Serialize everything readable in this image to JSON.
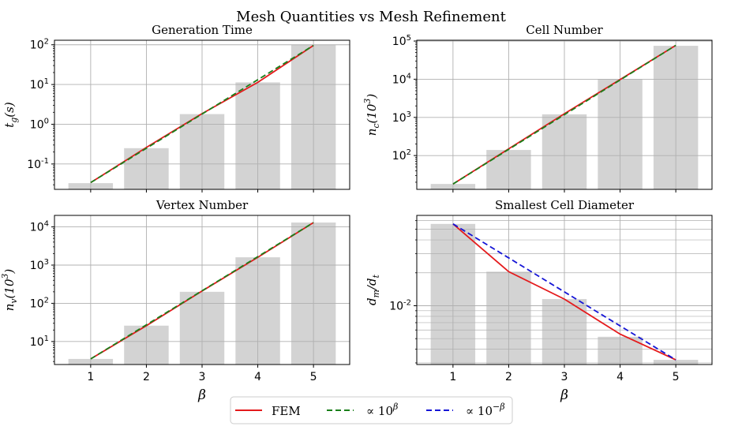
{
  "figure": {
    "suptitle": "Mesh Quantities vs Mesh Refinement",
    "legend": {
      "placement": "bottom-center",
      "entries": [
        {
          "label": "FEM",
          "color": "#e41a1c",
          "style": "solid"
        },
        {
          "label": "∝ 10^β",
          "color": "#1a7f1a",
          "style": "dashed"
        },
        {
          "label": "∝ 10^−β",
          "color": "#1515d6",
          "style": "dashed"
        }
      ]
    }
  },
  "chart_data": [
    {
      "type": "bar",
      "title": "Generation Time",
      "ylabel": "t_g(s)",
      "xlabel": "",
      "yscale": "log",
      "ylim": [
        0.023,
        130
      ],
      "x": [
        1,
        2,
        3,
        4,
        5
      ],
      "bars": [
        0.033,
        0.25,
        1.8,
        11.3,
        100
      ],
      "bar_color": "#d3d3d3",
      "yticks": [
        {
          "v": 0.1,
          "l": "10",
          "e": "-1"
        },
        {
          "v": 1,
          "l": "10",
          "e": "0"
        },
        {
          "v": 10,
          "l": "10",
          "e": "1"
        },
        {
          "v": 100,
          "l": "10",
          "e": "2"
        }
      ],
      "grid": true,
      "series": [
        {
          "name": "FEM",
          "kind": "fem",
          "x": [
            1,
            2,
            3,
            4,
            5
          ],
          "y": [
            0.034,
            0.26,
            1.85,
            11.3,
            96
          ]
        },
        {
          "name": "∝ 10^β",
          "kind": "pos",
          "x": [
            1,
            5
          ],
          "y": [
            0.034,
            96
          ]
        }
      ]
    },
    {
      "type": "bar",
      "title": "Cell Number",
      "ylabel": "n_c(10^3)",
      "xlabel": "",
      "yscale": "log",
      "ylim": [
        13,
        105000
      ],
      "x": [
        1,
        2,
        3,
        4,
        5
      ],
      "bars": [
        18,
        140,
        1200,
        10000,
        75000
      ],
      "bar_color": "#d3d3d3",
      "yticks": [
        {
          "v": 100,
          "l": "10",
          "e": "2"
        },
        {
          "v": 1000,
          "l": "10",
          "e": "3"
        },
        {
          "v": 10000,
          "l": "10",
          "e": "4"
        },
        {
          "v": 100000,
          "l": "10",
          "e": "5"
        }
      ],
      "grid": true,
      "series": [
        {
          "name": "FEM",
          "kind": "fem",
          "x": [
            1,
            2,
            3,
            4,
            5
          ],
          "y": [
            18,
            150,
            1250,
            9800,
            77000
          ]
        },
        {
          "name": "∝ 10^β",
          "kind": "pos",
          "x": [
            1,
            5
          ],
          "y": [
            18,
            77000
          ]
        }
      ]
    },
    {
      "type": "bar",
      "title": "Vertex Number",
      "ylabel": "n_v(10^3)",
      "xlabel": "β",
      "yscale": "log",
      "ylim": [
        2.5,
        20000
      ],
      "x": [
        1,
        2,
        3,
        4,
        5
      ],
      "bars": [
        3.5,
        26,
        200,
        1600,
        13000
      ],
      "bar_color": "#d3d3d3",
      "yticks": [
        {
          "v": 10,
          "l": "10",
          "e": "1"
        },
        {
          "v": 100,
          "l": "10",
          "e": "2"
        },
        {
          "v": 1000,
          "l": "10",
          "e": "3"
        },
        {
          "v": 10000,
          "l": "10",
          "e": "4"
        }
      ],
      "grid": true,
      "series": [
        {
          "name": "FEM",
          "kind": "fem",
          "x": [
            1,
            2,
            3,
            4,
            5
          ],
          "y": [
            3.5,
            26,
            210,
            1600,
            13000
          ]
        },
        {
          "name": "∝ 10^β",
          "kind": "pos",
          "x": [
            1,
            5
          ],
          "y": [
            3.5,
            13000
          ]
        }
      ]
    },
    {
      "type": "bar",
      "title": "Smallest Cell Diameter",
      "ylabel": "d_m/d_t",
      "xlabel": "β",
      "yscale": "log",
      "ylim": [
        0.0029,
        0.067
      ],
      "x": [
        1,
        2,
        3,
        4,
        5
      ],
      "bars": [
        0.056,
        0.0205,
        0.0115,
        0.0052,
        0.0032
      ],
      "bar_color": "#d3d3d3",
      "yticks": [
        {
          "v": 0.01,
          "l": "10",
          "e": "-2"
        }
      ],
      "grid": true,
      "series": [
        {
          "name": "FEM",
          "kind": "fem",
          "x": [
            1,
            2,
            3,
            4,
            5
          ],
          "y": [
            0.056,
            0.0205,
            0.0115,
            0.0055,
            0.0032
          ]
        },
        {
          "name": "∝ 10^−β",
          "kind": "neg",
          "x": [
            1,
            5
          ],
          "y": [
            0.056,
            0.0032
          ]
        }
      ]
    }
  ]
}
